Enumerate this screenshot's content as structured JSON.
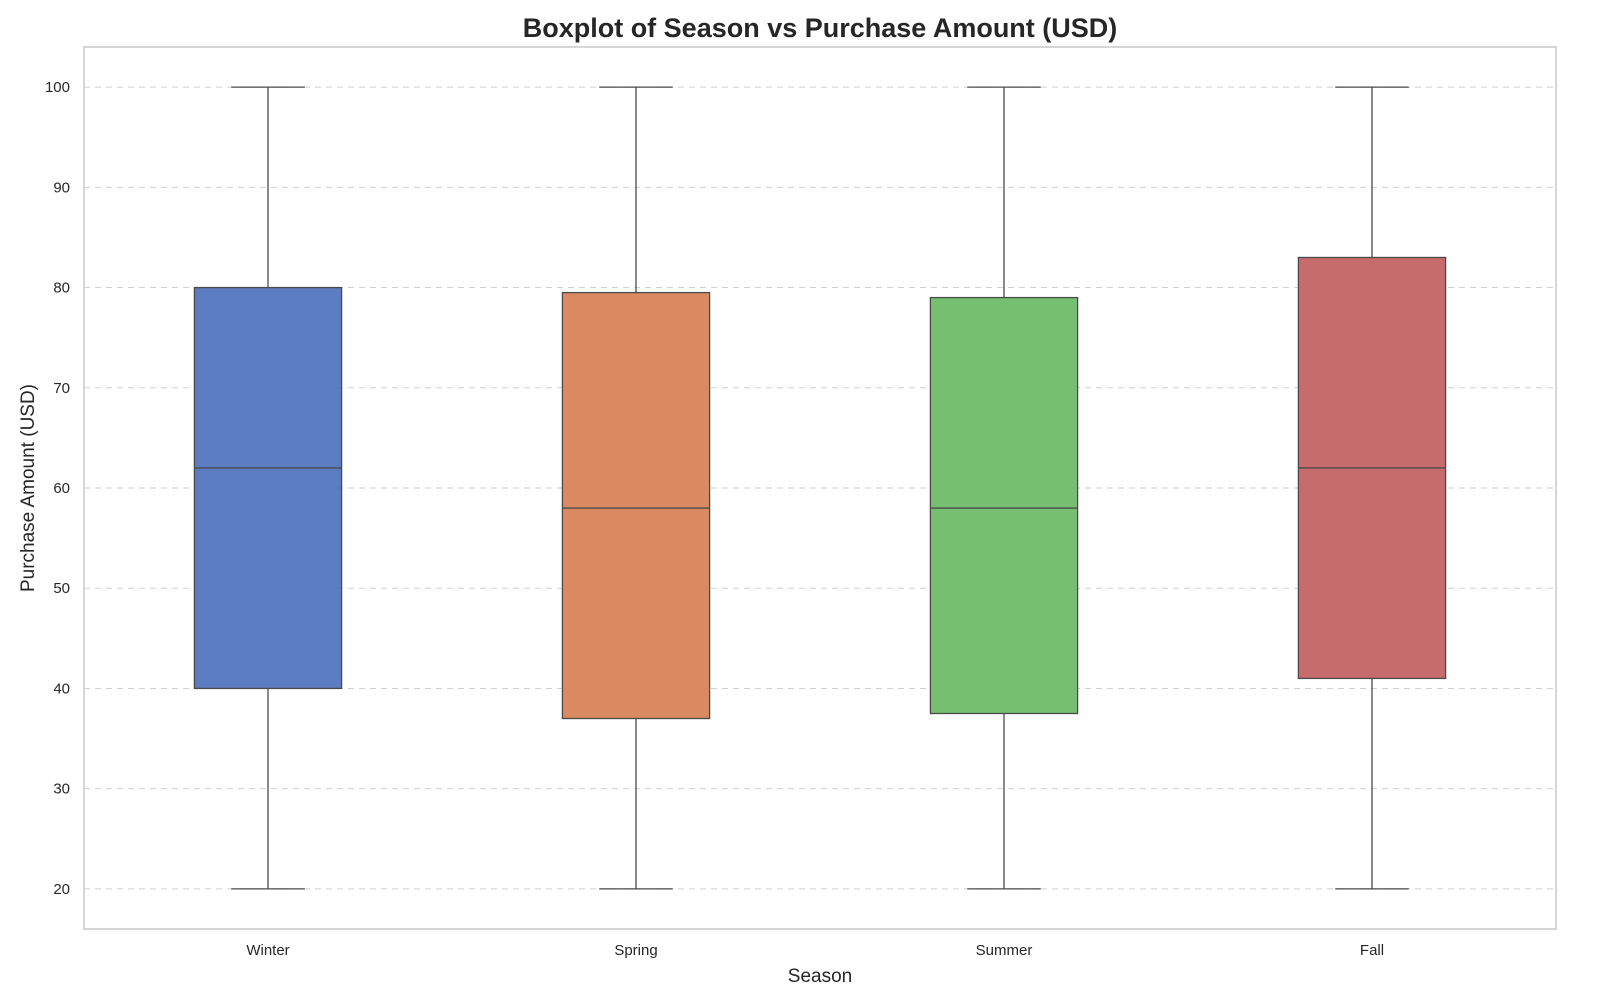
{
  "chart_data": {
    "type": "box",
    "title": "Boxplot of Season vs Purchase Amount (USD)",
    "xlabel": "Season",
    "ylabel": "Purchase Amount (USD)",
    "ylim": [
      16,
      104
    ],
    "yticks": [
      20,
      30,
      40,
      50,
      60,
      70,
      80,
      90,
      100
    ],
    "grid": true,
    "categories": [
      "Winter",
      "Spring",
      "Summer",
      "Fall"
    ],
    "boxes": [
      {
        "category": "Winter",
        "min": 20,
        "q1": 40,
        "median": 62,
        "q3": 80,
        "max": 100,
        "color": "#5b7cc0"
      },
      {
        "category": "Spring",
        "min": 20,
        "q1": 37,
        "median": 58,
        "q3": 79.5,
        "max": 100,
        "color": "#d98a60"
      },
      {
        "category": "Summer",
        "min": 20,
        "q1": 37.5,
        "median": 58,
        "q3": 79,
        "max": 100,
        "color": "#76bf70"
      },
      {
        "category": "Fall",
        "min": 20,
        "q1": 41,
        "median": 62,
        "q3": 83,
        "max": 100,
        "color": "#c66c6c"
      }
    ]
  }
}
